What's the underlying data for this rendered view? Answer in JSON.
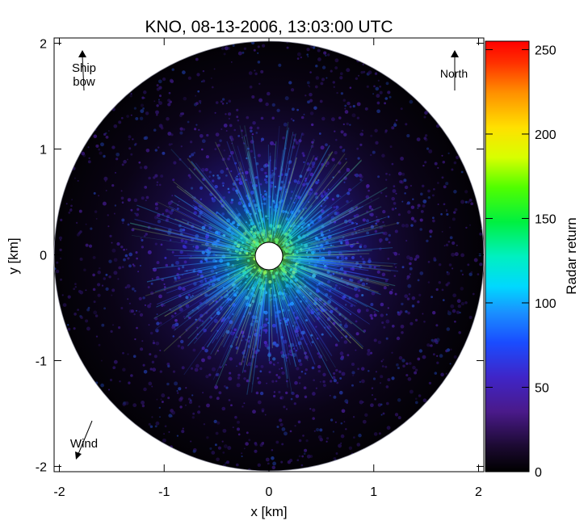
{
  "chart_data": {
    "type": "heatmap",
    "title": "KNO, 08-13-2006, 13:03:00 UTC",
    "xlabel": "x [km]",
    "ylabel": "y [km]",
    "xlim": [
      -2.05,
      2.05
    ],
    "ylim": [
      -2.05,
      2.05
    ],
    "x_ticks": [
      "-2",
      "-1",
      "0",
      "1",
      "2"
    ],
    "y_ticks": [
      "2",
      "1",
      "0",
      "-1",
      "-2"
    ],
    "radar_range_km": 2.0,
    "blanking_radius_km": 0.13,
    "grid": false,
    "annotations": {
      "ship_bow_line1": "Ship",
      "ship_bow_line2": "bow",
      "north": "North",
      "wind": "Wind"
    },
    "colorbar": {
      "label": "Radar return",
      "ticks": [
        "0",
        "50",
        "100",
        "150",
        "200",
        "250"
      ],
      "range": [
        0,
        255
      ],
      "colormap": "rainbow (black-purple-blue-cyan-green-yellow-red)"
    }
  }
}
